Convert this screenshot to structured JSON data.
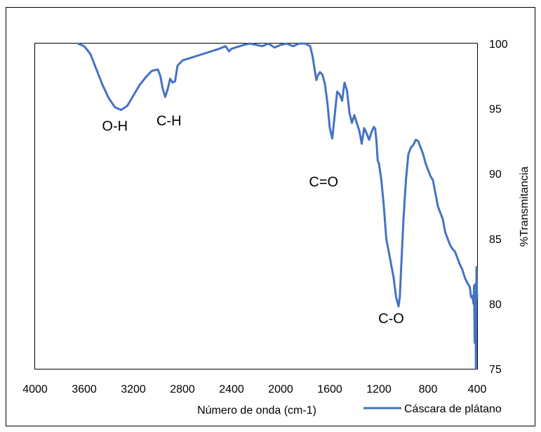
{
  "chart_data": {
    "type": "line",
    "title": "",
    "xlabel": "Número de onda (cm-1)",
    "ylabel": "%Transmitancia",
    "xlim": [
      4000,
      400
    ],
    "ylim": [
      75,
      100
    ],
    "x_reversed": true,
    "y_axis_side": "right",
    "grid": false,
    "legend_position": "bottom-right",
    "x_ticks": [
      4000,
      3600,
      3200,
      2800,
      2400,
      2000,
      1600,
      1200,
      800,
      400
    ],
    "x_tick_labels": [
      "4000",
      "3600",
      "3200",
      "2800",
      "2400",
      "2000",
      "1600",
      "1200",
      "800",
      "400"
    ],
    "y_ticks": [
      75,
      80,
      85,
      90,
      95,
      100
    ],
    "y_tick_labels": [
      "75",
      "80",
      "85",
      "90",
      "95",
      "100"
    ],
    "colors": {
      "series": "#4472C4",
      "frame": "#000000",
      "plot_border": "#000000"
    },
    "series": [
      {
        "name": "Cáscara de plátano",
        "x": [
          3650,
          3600,
          3550,
          3500,
          3450,
          3400,
          3350,
          3300,
          3250,
          3200,
          3150,
          3100,
          3050,
          3000,
          2980,
          2960,
          2940,
          2920,
          2900,
          2880,
          2860,
          2840,
          2800,
          2700,
          2600,
          2500,
          2450,
          2420,
          2400,
          2300,
          2250,
          2200,
          2150,
          2100,
          2050,
          2000,
          1950,
          1900,
          1850,
          1800,
          1760,
          1740,
          1720,
          1710,
          1700,
          1680,
          1660,
          1640,
          1620,
          1600,
          1580,
          1560,
          1540,
          1520,
          1500,
          1480,
          1460,
          1440,
          1420,
          1400,
          1380,
          1360,
          1340,
          1320,
          1300,
          1280,
          1260,
          1240,
          1230,
          1220,
          1210,
          1200,
          1180,
          1160,
          1140,
          1120,
          1100,
          1080,
          1060,
          1040,
          1030,
          1020,
          1000,
          980,
          960,
          940,
          920,
          900,
          880,
          860,
          840,
          820,
          800,
          780,
          760,
          740,
          720,
          700,
          680,
          660,
          640,
          620,
          600,
          580,
          560,
          540,
          520,
          500,
          480,
          460,
          450,
          440,
          430,
          425,
          420,
          415,
          410,
          405,
          402,
          400
        ],
        "y": [
          100,
          99.8,
          99.2,
          98.0,
          96.8,
          95.8,
          95.1,
          94.9,
          95.2,
          96.0,
          96.8,
          97.4,
          97.9,
          98.0,
          97.5,
          96.5,
          95.9,
          96.5,
          97.3,
          97.0,
          97.1,
          98.3,
          98.7,
          99.0,
          99.3,
          99.6,
          99.8,
          99.4,
          99.6,
          99.9,
          100.0,
          99.9,
          99.8,
          100.0,
          99.7,
          99.9,
          100.0,
          99.8,
          100.0,
          100.0,
          99.8,
          99.0,
          97.8,
          97.2,
          97.5,
          97.8,
          97.6,
          96.9,
          95.5,
          93.5,
          92.7,
          94.5,
          96.3,
          96.1,
          95.6,
          97.0,
          96.4,
          94.7,
          93.9,
          94.5,
          93.9,
          93.3,
          92.3,
          93.5,
          93.1,
          92.6,
          93.2,
          93.6,
          93.4,
          92.5,
          91.0,
          90.8,
          89.5,
          87.5,
          85.0,
          84.0,
          83.0,
          82.0,
          80.5,
          79.8,
          80.5,
          82.5,
          86.5,
          89.5,
          91.5,
          92.0,
          92.2,
          92.6,
          92.5,
          92.0,
          91.5,
          90.8,
          90.3,
          89.8,
          89.5,
          88.5,
          87.5,
          87.0,
          86.5,
          85.5,
          85.0,
          84.5,
          84.2,
          84.0,
          83.5,
          83.0,
          82.6,
          82.0,
          81.6,
          81.3,
          80.5,
          80.6,
          80.0,
          81.4,
          77.0,
          81.5,
          75.0,
          82.8,
          81.0,
          80.5
        ]
      }
    ],
    "annotations": [
      {
        "text": "O-H",
        "x": 3350,
        "y": 93.3
      },
      {
        "text": "C-H",
        "x": 2910,
        "y": 93.7
      },
      {
        "text": "C=O",
        "x": 1650,
        "y": 89.0
      },
      {
        "text": "C-O",
        "x": 1100,
        "y": 78.5
      }
    ],
    "legend": {
      "label": "Cáscara de plátano"
    }
  }
}
